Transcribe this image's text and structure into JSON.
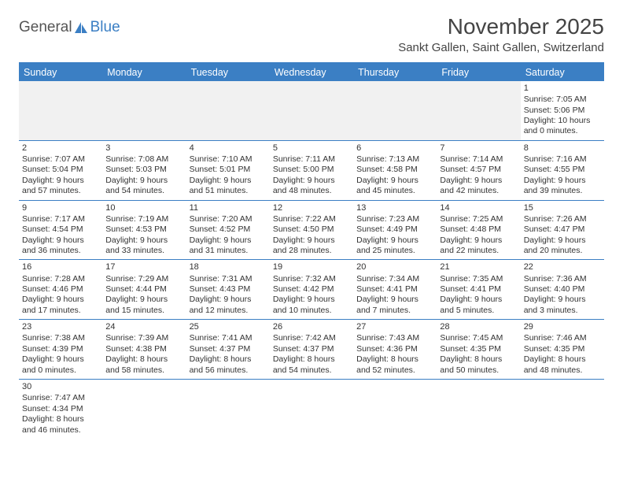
{
  "logo": {
    "text1": "General",
    "text2": "Blue"
  },
  "title": "November 2025",
  "location": "Sankt Gallen, Saint Gallen, Switzerland",
  "colors": {
    "accent": "#3b7fc4",
    "header_text": "#ffffff",
    "body_text": "#333333",
    "empty_bg": "#f1f1f1",
    "page_bg": "#ffffff"
  },
  "typography": {
    "title_fontsize": 28,
    "location_fontsize": 15,
    "dayheader_fontsize": 12.5,
    "cell_fontsize": 10.5
  },
  "day_headers": [
    "Sunday",
    "Monday",
    "Tuesday",
    "Wednesday",
    "Thursday",
    "Friday",
    "Saturday"
  ],
  "weeks": [
    [
      null,
      null,
      null,
      null,
      null,
      null,
      {
        "n": "1",
        "sunrise": "Sunrise: 7:05 AM",
        "sunset": "Sunset: 5:06 PM",
        "daylight": "Daylight: 10 hours and 0 minutes."
      }
    ],
    [
      {
        "n": "2",
        "sunrise": "Sunrise: 7:07 AM",
        "sunset": "Sunset: 5:04 PM",
        "daylight": "Daylight: 9 hours and 57 minutes."
      },
      {
        "n": "3",
        "sunrise": "Sunrise: 7:08 AM",
        "sunset": "Sunset: 5:03 PM",
        "daylight": "Daylight: 9 hours and 54 minutes."
      },
      {
        "n": "4",
        "sunrise": "Sunrise: 7:10 AM",
        "sunset": "Sunset: 5:01 PM",
        "daylight": "Daylight: 9 hours and 51 minutes."
      },
      {
        "n": "5",
        "sunrise": "Sunrise: 7:11 AM",
        "sunset": "Sunset: 5:00 PM",
        "daylight": "Daylight: 9 hours and 48 minutes."
      },
      {
        "n": "6",
        "sunrise": "Sunrise: 7:13 AM",
        "sunset": "Sunset: 4:58 PM",
        "daylight": "Daylight: 9 hours and 45 minutes."
      },
      {
        "n": "7",
        "sunrise": "Sunrise: 7:14 AM",
        "sunset": "Sunset: 4:57 PM",
        "daylight": "Daylight: 9 hours and 42 minutes."
      },
      {
        "n": "8",
        "sunrise": "Sunrise: 7:16 AM",
        "sunset": "Sunset: 4:55 PM",
        "daylight": "Daylight: 9 hours and 39 minutes."
      }
    ],
    [
      {
        "n": "9",
        "sunrise": "Sunrise: 7:17 AM",
        "sunset": "Sunset: 4:54 PM",
        "daylight": "Daylight: 9 hours and 36 minutes."
      },
      {
        "n": "10",
        "sunrise": "Sunrise: 7:19 AM",
        "sunset": "Sunset: 4:53 PM",
        "daylight": "Daylight: 9 hours and 33 minutes."
      },
      {
        "n": "11",
        "sunrise": "Sunrise: 7:20 AM",
        "sunset": "Sunset: 4:52 PM",
        "daylight": "Daylight: 9 hours and 31 minutes."
      },
      {
        "n": "12",
        "sunrise": "Sunrise: 7:22 AM",
        "sunset": "Sunset: 4:50 PM",
        "daylight": "Daylight: 9 hours and 28 minutes."
      },
      {
        "n": "13",
        "sunrise": "Sunrise: 7:23 AM",
        "sunset": "Sunset: 4:49 PM",
        "daylight": "Daylight: 9 hours and 25 minutes."
      },
      {
        "n": "14",
        "sunrise": "Sunrise: 7:25 AM",
        "sunset": "Sunset: 4:48 PM",
        "daylight": "Daylight: 9 hours and 22 minutes."
      },
      {
        "n": "15",
        "sunrise": "Sunrise: 7:26 AM",
        "sunset": "Sunset: 4:47 PM",
        "daylight": "Daylight: 9 hours and 20 minutes."
      }
    ],
    [
      {
        "n": "16",
        "sunrise": "Sunrise: 7:28 AM",
        "sunset": "Sunset: 4:46 PM",
        "daylight": "Daylight: 9 hours and 17 minutes."
      },
      {
        "n": "17",
        "sunrise": "Sunrise: 7:29 AM",
        "sunset": "Sunset: 4:44 PM",
        "daylight": "Daylight: 9 hours and 15 minutes."
      },
      {
        "n": "18",
        "sunrise": "Sunrise: 7:31 AM",
        "sunset": "Sunset: 4:43 PM",
        "daylight": "Daylight: 9 hours and 12 minutes."
      },
      {
        "n": "19",
        "sunrise": "Sunrise: 7:32 AM",
        "sunset": "Sunset: 4:42 PM",
        "daylight": "Daylight: 9 hours and 10 minutes."
      },
      {
        "n": "20",
        "sunrise": "Sunrise: 7:34 AM",
        "sunset": "Sunset: 4:41 PM",
        "daylight": "Daylight: 9 hours and 7 minutes."
      },
      {
        "n": "21",
        "sunrise": "Sunrise: 7:35 AM",
        "sunset": "Sunset: 4:41 PM",
        "daylight": "Daylight: 9 hours and 5 minutes."
      },
      {
        "n": "22",
        "sunrise": "Sunrise: 7:36 AM",
        "sunset": "Sunset: 4:40 PM",
        "daylight": "Daylight: 9 hours and 3 minutes."
      }
    ],
    [
      {
        "n": "23",
        "sunrise": "Sunrise: 7:38 AM",
        "sunset": "Sunset: 4:39 PM",
        "daylight": "Daylight: 9 hours and 0 minutes."
      },
      {
        "n": "24",
        "sunrise": "Sunrise: 7:39 AM",
        "sunset": "Sunset: 4:38 PM",
        "daylight": "Daylight: 8 hours and 58 minutes."
      },
      {
        "n": "25",
        "sunrise": "Sunrise: 7:41 AM",
        "sunset": "Sunset: 4:37 PM",
        "daylight": "Daylight: 8 hours and 56 minutes."
      },
      {
        "n": "26",
        "sunrise": "Sunrise: 7:42 AM",
        "sunset": "Sunset: 4:37 PM",
        "daylight": "Daylight: 8 hours and 54 minutes."
      },
      {
        "n": "27",
        "sunrise": "Sunrise: 7:43 AM",
        "sunset": "Sunset: 4:36 PM",
        "daylight": "Daylight: 8 hours and 52 minutes."
      },
      {
        "n": "28",
        "sunrise": "Sunrise: 7:45 AM",
        "sunset": "Sunset: 4:35 PM",
        "daylight": "Daylight: 8 hours and 50 minutes."
      },
      {
        "n": "29",
        "sunrise": "Sunrise: 7:46 AM",
        "sunset": "Sunset: 4:35 PM",
        "daylight": "Daylight: 8 hours and 48 minutes."
      }
    ],
    [
      {
        "n": "30",
        "sunrise": "Sunrise: 7:47 AM",
        "sunset": "Sunset: 4:34 PM",
        "daylight": "Daylight: 8 hours and 46 minutes."
      },
      null,
      null,
      null,
      null,
      null,
      null
    ]
  ]
}
